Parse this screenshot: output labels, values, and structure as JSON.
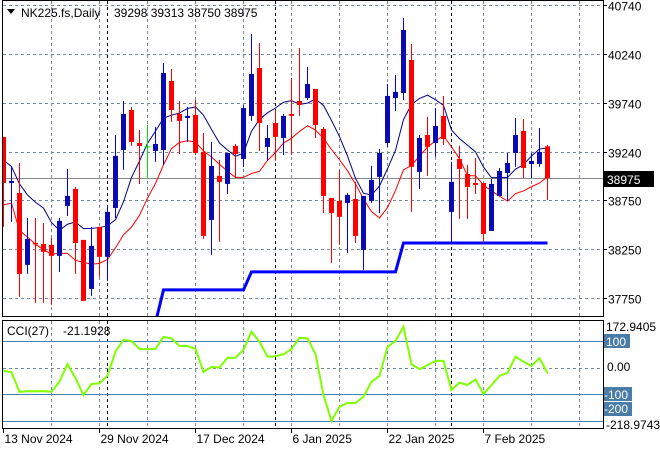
{
  "header": {
    "symbol": "NK225.fs,Daily",
    "ohlc": "39298 39313 38750 38975"
  },
  "colors": {
    "bull_body": "#0a0ab4",
    "bull_wick": "#0000ff",
    "bear": "#ff0000",
    "doji": "#00e000",
    "ma_upper": "#000080",
    "ma_lower": "#ff0000",
    "step_line": "#0000ff",
    "cci_line": "#7fff00",
    "level_line": "#4682b4",
    "grid": "#778899",
    "separator": "#000000"
  },
  "chart_data": [
    {
      "type": "candlestick",
      "title": "NK225.fs,Daily",
      "ylim": [
        37660,
        40790
      ],
      "yticks": [
        "40740",
        "40240",
        "39740",
        "39240",
        "38750",
        "38250",
        "37750"
      ],
      "current_price": 38975,
      "current_price_label": "38975",
      "grid": true,
      "period_separators": [
        13,
        34,
        56
      ],
      "xlabels": [
        {
          "index": 0,
          "label": "13 Nov 2024"
        },
        {
          "index": 12,
          "label": "29 Nov 2024"
        },
        {
          "index": 24,
          "label": "17 Dec 2024"
        },
        {
          "index": 36,
          "label": "6 Jan 2025"
        },
        {
          "index": 48,
          "label": "22 Jan 2025"
        },
        {
          "index": 60,
          "label": "7 Feb 2025"
        }
      ],
      "candles": [
        [
          39394,
          39394,
          38476,
          38924
        ],
        [
          38924,
          39098,
          38527,
          38945
        ],
        [
          38822,
          39128,
          37762,
          37996
        ],
        [
          38088,
          38567,
          37996,
          38353
        ],
        [
          38312,
          38567,
          37700,
          38302
        ],
        [
          38302,
          38516,
          37700,
          38221
        ],
        [
          38292,
          38363,
          37680,
          38180
        ],
        [
          38180,
          38567,
          38017,
          38537
        ],
        [
          38690,
          39067,
          38588,
          38792
        ],
        [
          38863,
          38884,
          37996,
          38312
        ],
        [
          38343,
          38343,
          37721,
          37721
        ],
        [
          37843,
          38476,
          37772,
          38282
        ],
        [
          38476,
          38476,
          37966,
          38170
        ],
        [
          38170,
          38690,
          37925,
          38629
        ],
        [
          38669,
          39414,
          38567,
          39200
        ],
        [
          39261,
          39761,
          39057,
          39628
        ],
        [
          39669,
          39700,
          39302,
          39343
        ],
        [
          39332,
          39465,
          38914,
          39302
        ],
        [
          39292,
          39516,
          38965,
          39292
        ],
        [
          39251,
          39496,
          39139,
          39322
        ],
        [
          39261,
          40148,
          39108,
          40046
        ],
        [
          39965,
          40087,
          39547,
          39669
        ],
        [
          39628,
          39761,
          39220,
          39557
        ],
        [
          39587,
          39700,
          39343,
          39608
        ],
        [
          39618,
          39771,
          39210,
          39230
        ],
        [
          39241,
          39434,
          38353,
          38384
        ],
        [
          38547,
          39343,
          38190,
          39098
        ],
        [
          38996,
          39159,
          38323,
          38935
        ],
        [
          38914,
          39230,
          38812,
          39230
        ],
        [
          39302,
          39322,
          38986,
          39220
        ],
        [
          39169,
          39720,
          39088,
          39689
        ],
        [
          39608,
          40444,
          39557,
          40036
        ],
        [
          40097,
          40352,
          39251,
          39536
        ],
        [
          39292,
          39516,
          39149,
          39383
        ],
        [
          39536,
          39669,
          39149,
          39394
        ],
        [
          39383,
          39628,
          39210,
          39608
        ],
        [
          39628,
          39995,
          39210,
          39608
        ],
        [
          39761,
          40301,
          39608,
          39720
        ],
        [
          39791,
          40108,
          39771,
          39934
        ],
        [
          39883,
          39883,
          39383,
          39516
        ],
        [
          39475,
          39495,
          38618,
          38792
        ],
        [
          38771,
          38771,
          38108,
          38618
        ],
        [
          38741,
          39057,
          38292,
          38578
        ],
        [
          38720,
          38822,
          38210,
          38802
        ],
        [
          38761,
          38935,
          38312,
          38384
        ],
        [
          38241,
          38792,
          38037,
          38792
        ],
        [
          38741,
          39098,
          38720,
          38955
        ],
        [
          38986,
          39271,
          38618,
          39230
        ],
        [
          39332,
          39934,
          39292,
          39812
        ],
        [
          39791,
          40026,
          39659,
          39853
        ],
        [
          39842,
          40607,
          39771,
          40485
        ],
        [
          40179,
          40342,
          38629,
          39088
        ],
        [
          39037,
          39414,
          38863,
          39383
        ],
        [
          39414,
          39598,
          38996,
          39292
        ],
        [
          39332,
          39689,
          39190,
          39506
        ],
        [
          39608,
          39812,
          39312,
          39373
        ],
        [
          38629,
          39139,
          38323,
          38935
        ],
        [
          39169,
          39302,
          38557,
          39067
        ],
        [
          39016,
          39108,
          38557,
          38884
        ],
        [
          38924,
          39179,
          38812,
          38904
        ],
        [
          38924,
          38924,
          38312,
          38404
        ],
        [
          38435,
          38965,
          38435,
          38914
        ],
        [
          38792,
          39077,
          38792,
          39047
        ],
        [
          39026,
          39230,
          38741,
          39128
        ],
        [
          39230,
          39587,
          39088,
          39414
        ],
        [
          39455,
          39577,
          38975,
          39077
        ],
        [
          39118,
          39230,
          38975,
          39149
        ],
        [
          39118,
          39485,
          39088,
          39241
        ],
        [
          39298,
          39313,
          38750,
          38975
        ]
      ],
      "step_line": [
        null,
        null,
        null,
        null,
        null,
        null,
        null,
        null,
        null,
        null,
        null,
        null,
        null,
        null,
        null,
        null,
        null,
        null,
        null,
        37500,
        37833,
        37833,
        37833,
        37833,
        37833,
        37833,
        37833,
        37833,
        37833,
        37833,
        37833,
        38017,
        38017,
        38017,
        38017,
        38017,
        38017,
        38017,
        38017,
        38017,
        38017,
        38017,
        38017,
        38017,
        38017,
        38017,
        38017,
        38017,
        38017,
        38017,
        38312,
        38312,
        38312,
        38312,
        38312,
        38312,
        38312,
        38312,
        38312,
        38312,
        38312,
        38312,
        38312,
        38312,
        38312,
        38312,
        38312,
        38312,
        38312
      ]
    },
    {
      "type": "line",
      "title": "CCI(27)",
      "value_label": "-21.1928",
      "max_label": "172.9405",
      "min_label": "-218.9743",
      "ylim": [
        -218.9743,
        172.9405
      ],
      "levels": [
        100,
        0,
        -100,
        -200
      ],
      "level_labels": {
        "plus100": "100",
        "zero": "0.00",
        "minus100": "-100",
        "minus200": "-200"
      },
      "values": [
        -12,
        -18,
        -92,
        -89,
        -90,
        -89,
        -92,
        -53,
        13,
        -40,
        -104,
        -62,
        -60,
        -31,
        60,
        104,
        100,
        70,
        69,
        70,
        115,
        110,
        81,
        81,
        70,
        -17,
        2,
        0,
        37,
        37,
        67,
        135,
        97,
        41,
        42,
        50,
        69,
        112,
        110,
        51,
        -104,
        -202,
        -148,
        -134,
        -134,
        -110,
        -54,
        -32,
        78,
        100,
        154,
        12,
        -6,
        9,
        25,
        25,
        -85,
        -57,
        -66,
        -45,
        -100,
        -66,
        -32,
        -20,
        41,
        22,
        6,
        35,
        -21.1928
      ]
    }
  ]
}
